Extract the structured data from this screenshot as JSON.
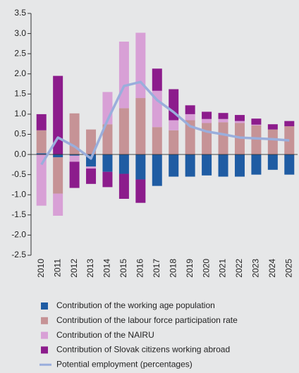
{
  "chart_data": {
    "type": "bar",
    "stacked": true,
    "categories": [
      "2010",
      "2011",
      "2012",
      "2013",
      "2014",
      "2015",
      "2016",
      "2017",
      "2018",
      "2019",
      "2020",
      "2021",
      "2022",
      "2023",
      "2024",
      "2025"
    ],
    "series": [
      {
        "name": "Contribution of the working age population",
        "color": "#1f5ca3",
        "values": [
          0.03,
          -0.07,
          -0.03,
          -0.3,
          -0.43,
          -0.48,
          -0.62,
          -0.78,
          -0.55,
          -0.55,
          -0.52,
          -0.55,
          -0.55,
          -0.5,
          -0.38,
          -0.5
        ]
      },
      {
        "name": "Contribution of the labour force participation rate",
        "color": "#c69396",
        "values": [
          0.57,
          -0.9,
          1.02,
          0.62,
          0.75,
          1.15,
          1.4,
          0.68,
          0.6,
          0.85,
          0.78,
          0.8,
          0.78,
          0.72,
          0.62,
          0.7
        ]
      },
      {
        "name": "Contribution of the NAIRU",
        "color": "#d8a0d6",
        "values": [
          -1.27,
          -0.55,
          -0.15,
          -0.05,
          0.8,
          1.65,
          1.62,
          0.9,
          0.25,
          0.15,
          0.1,
          0.08,
          0.05,
          0.02,
          0,
          0
        ]
      },
      {
        "name": "Contribution of Slovak citizens working abroad",
        "color": "#8c1c8c",
        "values": [
          0.4,
          1.95,
          -0.65,
          -0.38,
          -0.38,
          -0.62,
          -0.58,
          0.55,
          0.77,
          0.22,
          0.18,
          0.15,
          0.15,
          0.15,
          0.13,
          0.13
        ]
      },
      {
        "name": "Potential employment (percentages)",
        "type": "line",
        "color": "#9aaedc",
        "values": [
          -0.25,
          0.42,
          0.2,
          -0.1,
          0.85,
          1.7,
          1.8,
          1.35,
          1.05,
          0.7,
          0.57,
          0.5,
          0.42,
          0.4,
          0.38,
          0.35
        ]
      }
    ],
    "ylim": [
      -2.5,
      3.5
    ],
    "yticks": [
      {
        "value": -2.5,
        "label": "-2.5"
      },
      {
        "value": -2,
        "label": "-2.0"
      },
      -1.5,
      {
        "value": -1,
        "label": "-1.0"
      },
      -0.5,
      {
        "value": 0,
        "label": "0.0"
      },
      0.5,
      {
        "value": 1,
        "label": "1.0"
      },
      1.5,
      {
        "value": 2,
        "label": "2.0"
      },
      2.5,
      {
        "value": 3,
        "label": "3.0"
      },
      3.5
    ]
  }
}
